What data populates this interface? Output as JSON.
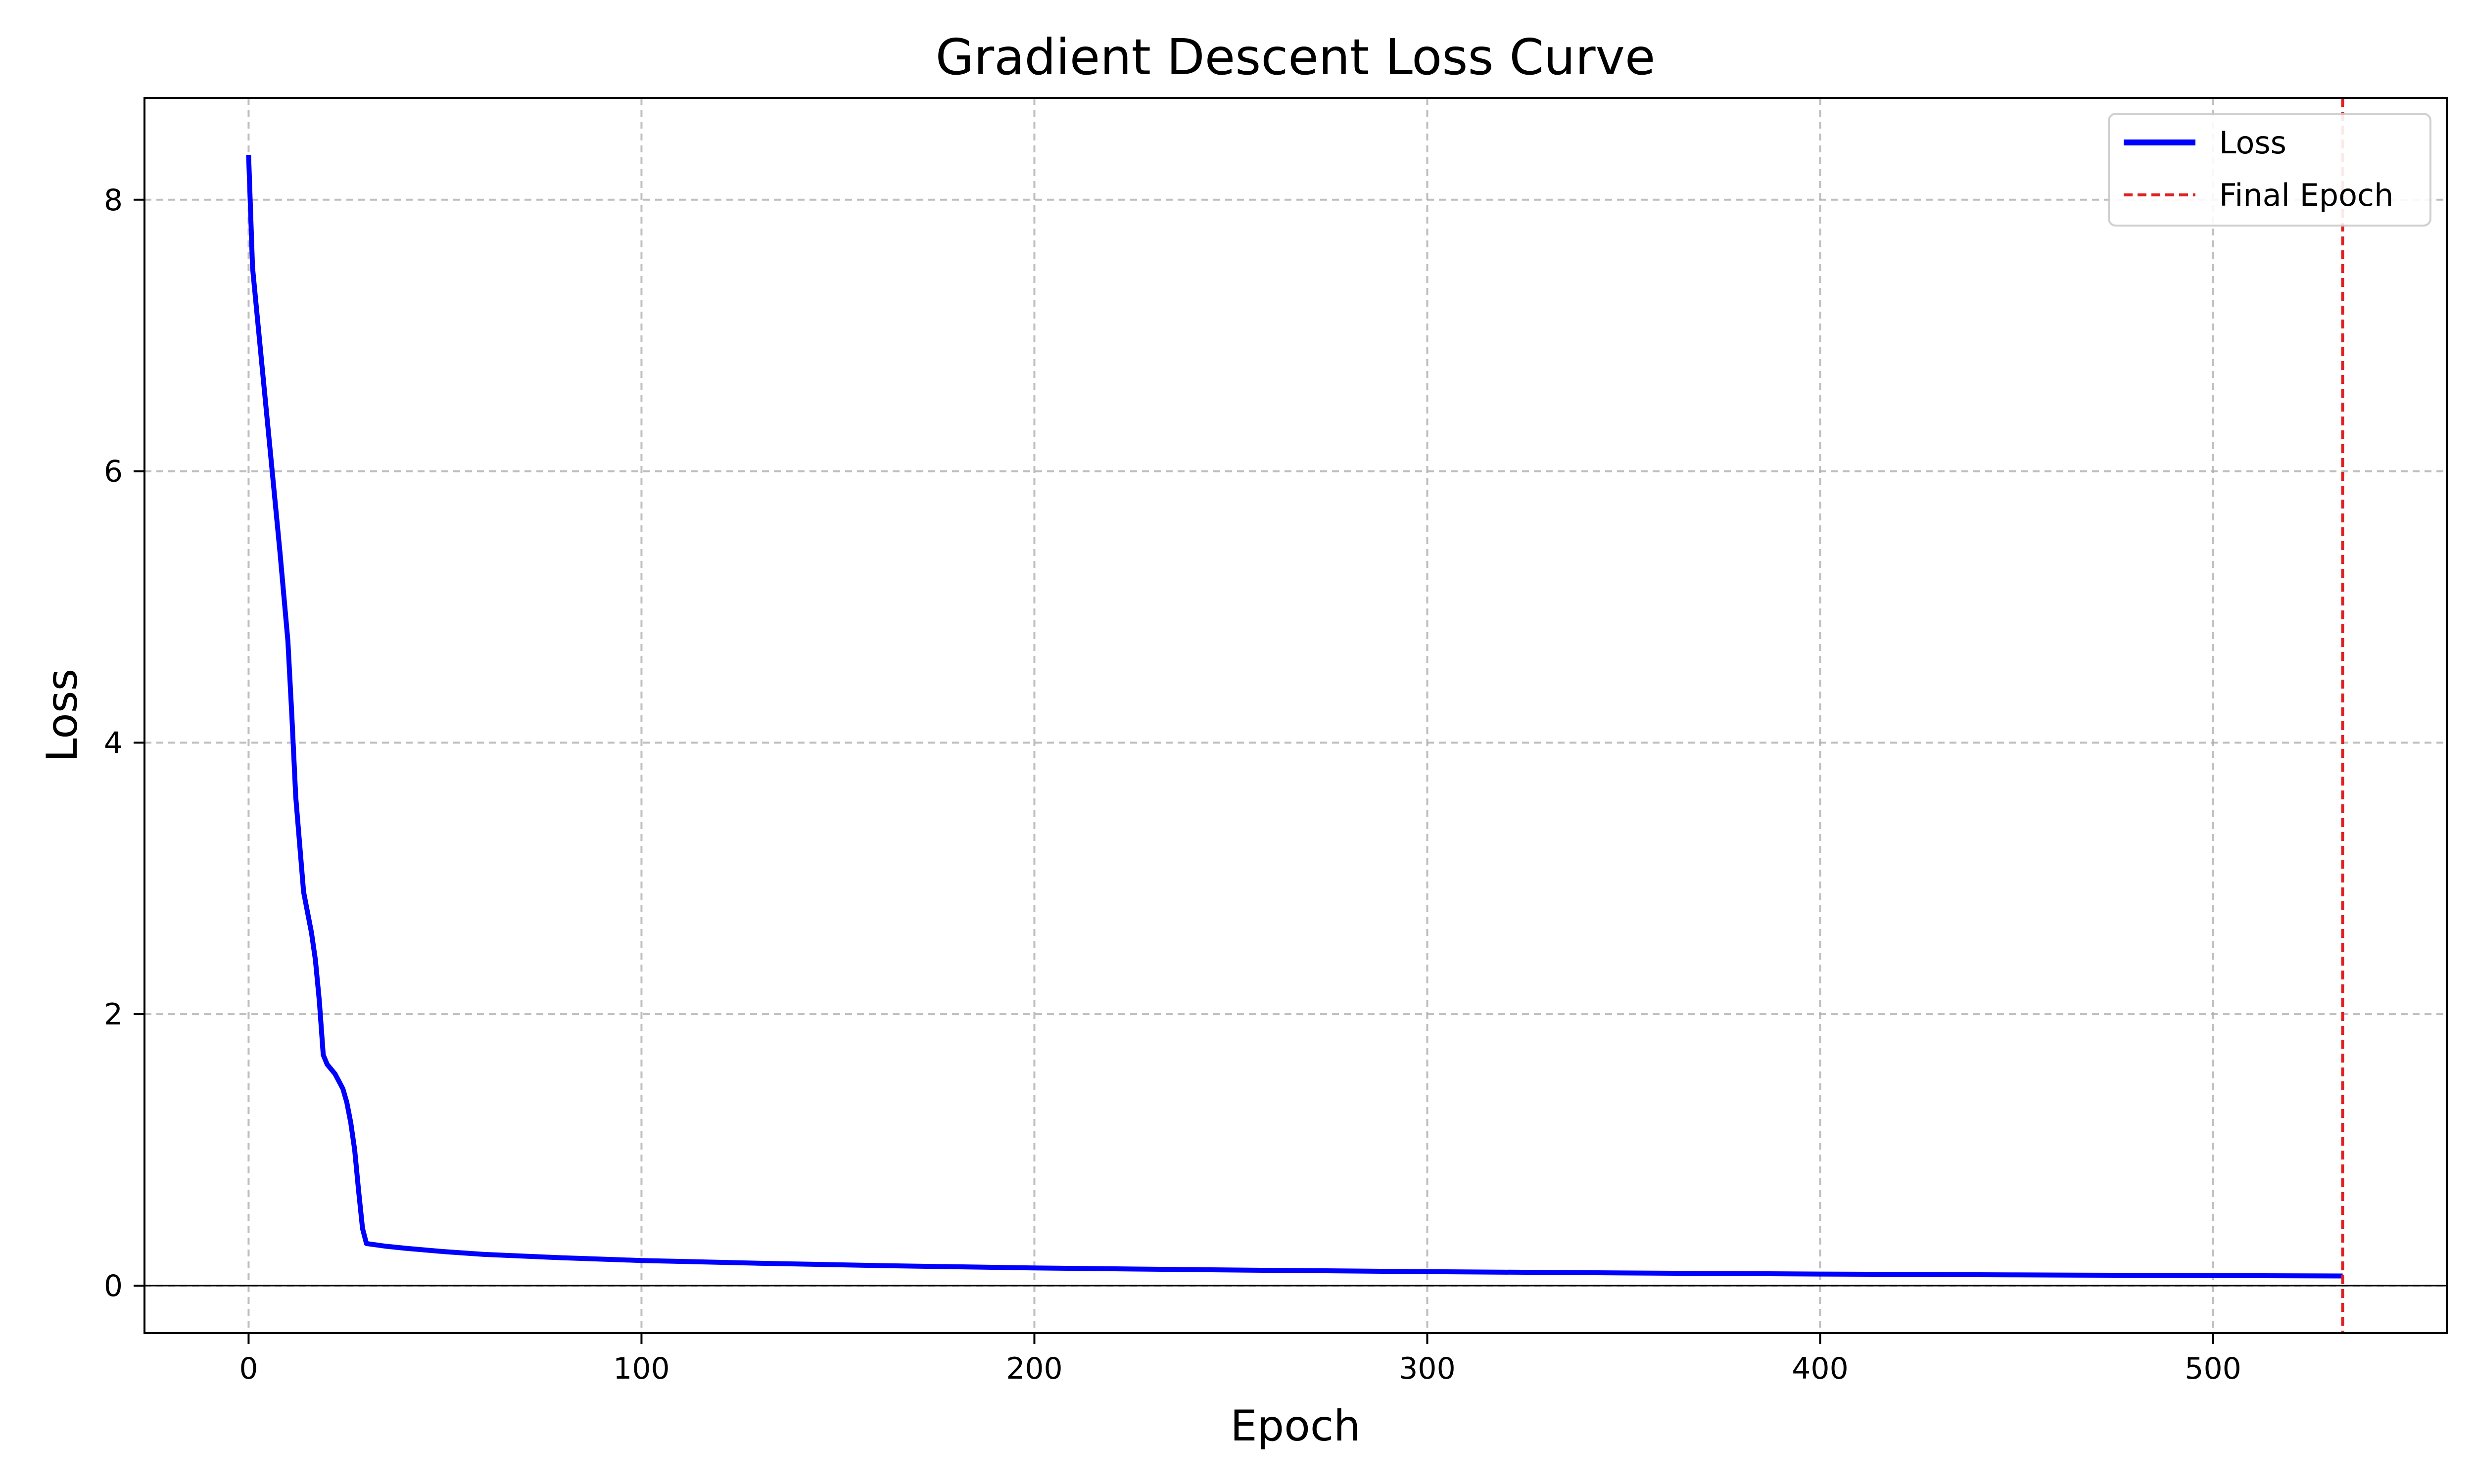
{
  "chart_data": {
    "type": "line",
    "title": "Gradient Descent Loss Curve",
    "xlabel": "Epoch",
    "ylabel": "Loss",
    "xlim": [
      -26.5,
      559.5
    ],
    "ylim": [
      -0.35,
      8.75
    ],
    "x_ticks": [
      0,
      100,
      200,
      300,
      400,
      500
    ],
    "y_ticks": [
      0,
      2,
      4,
      6,
      8
    ],
    "x_tick_labels": [
      "0",
      "100",
      "200",
      "300",
      "400",
      "500"
    ],
    "y_tick_labels": [
      "0",
      "2",
      "4",
      "6",
      "8"
    ],
    "grid": true,
    "legend_position": "top-right",
    "series": [
      {
        "name": "Loss",
        "color": "#0000ff",
        "style": "solid",
        "points": [
          [
            0,
            8.33
          ],
          [
            1,
            7.5
          ],
          [
            2,
            7.2
          ],
          [
            4,
            6.6
          ],
          [
            6,
            6.0
          ],
          [
            8,
            5.4
          ],
          [
            10,
            4.75
          ],
          [
            11,
            4.2
          ],
          [
            12,
            3.6
          ],
          [
            14,
            2.9
          ],
          [
            16,
            2.6
          ],
          [
            17,
            2.4
          ],
          [
            18,
            2.1
          ],
          [
            19,
            1.7
          ],
          [
            20,
            1.63
          ],
          [
            22,
            1.56
          ],
          [
            24,
            1.45
          ],
          [
            25,
            1.35
          ],
          [
            26,
            1.2
          ],
          [
            27,
            1.0
          ],
          [
            28,
            0.7
          ],
          [
            29,
            0.42
          ],
          [
            30,
            0.31
          ],
          [
            35,
            0.29
          ],
          [
            40,
            0.275
          ],
          [
            50,
            0.25
          ],
          [
            60,
            0.23
          ],
          [
            80,
            0.205
          ],
          [
            100,
            0.185
          ],
          [
            130,
            0.165
          ],
          [
            160,
            0.148
          ],
          [
            200,
            0.13
          ],
          [
            250,
            0.115
          ],
          [
            300,
            0.103
          ],
          [
            350,
            0.093
          ],
          [
            400,
            0.085
          ],
          [
            450,
            0.079
          ],
          [
            500,
            0.074
          ],
          [
            533,
            0.071
          ]
        ]
      }
    ],
    "vlines": [
      {
        "name": "Final Epoch",
        "x": 533,
        "color": "#e02020",
        "style": "dashed"
      }
    ],
    "hlines": [
      {
        "y": 0,
        "color": "#000000"
      }
    ]
  }
}
